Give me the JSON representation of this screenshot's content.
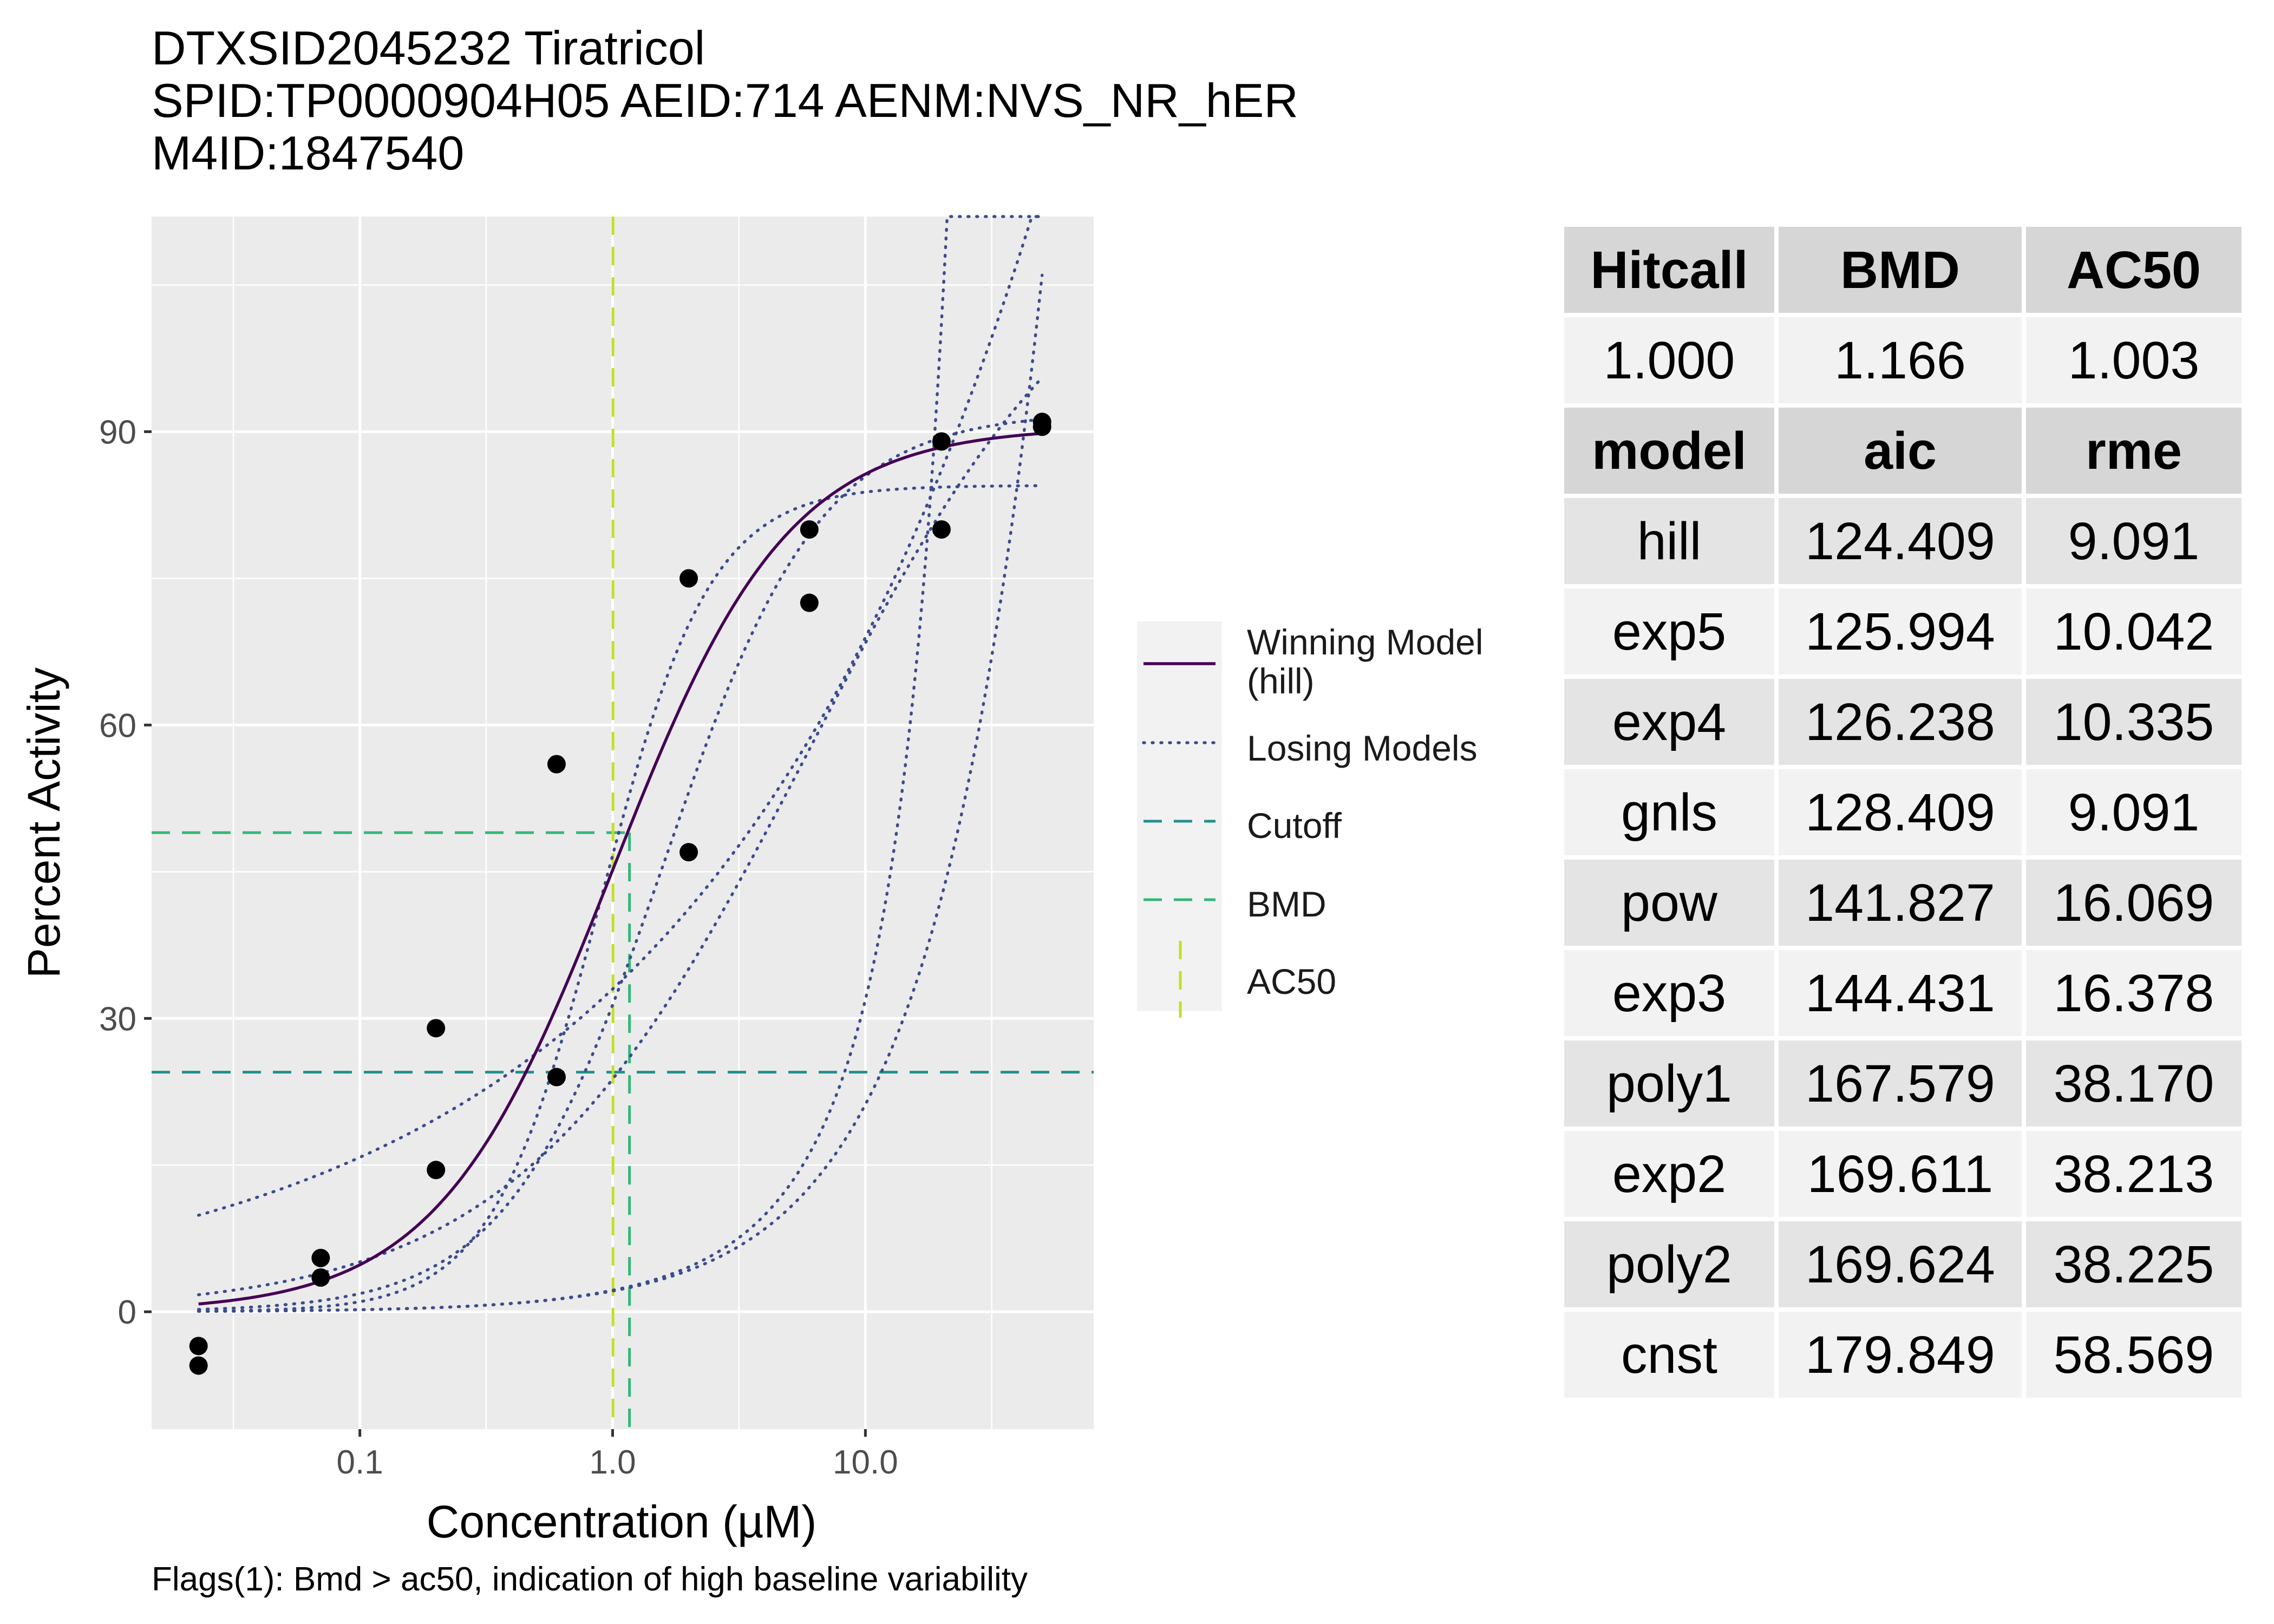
{
  "title": {
    "line1": "DTXSID2045232 Tiratricol",
    "line2": "SPID:TP0000904H05  AEID:714  AENM:NVS_NR_hER",
    "line3": "M4ID:1847540"
  },
  "footnote": "Flags(1): Bmd > ac50, indication of high baseline variability",
  "colors": {
    "panel_bg": "#ebebeb",
    "grid": "#ffffff",
    "points": "#000000",
    "winning": "#440154",
    "losing": "#3b4c8c",
    "cutoff": "#21908d",
    "bmd": "#35b779",
    "ac50": "#c2df23"
  },
  "legend": {
    "winning": "Winning Model\n(hill)",
    "losing": "Losing Models",
    "cutoff": "Cutoff",
    "bmd": "BMD",
    "ac50": "AC50"
  },
  "table": {
    "header1": [
      "Hitcall",
      "BMD",
      "AC50"
    ],
    "values1": [
      "1.000",
      "1.166",
      "1.003"
    ],
    "header2": [
      "model",
      "aic",
      "rme"
    ],
    "rows": [
      [
        "hill",
        "124.409",
        "9.091"
      ],
      [
        "exp5",
        "125.994",
        "10.042"
      ],
      [
        "exp4",
        "126.238",
        "10.335"
      ],
      [
        "gnls",
        "128.409",
        "9.091"
      ],
      [
        "pow",
        "141.827",
        "16.069"
      ],
      [
        "exp3",
        "144.431",
        "16.378"
      ],
      [
        "poly1",
        "167.579",
        "38.170"
      ],
      [
        "exp2",
        "169.611",
        "38.213"
      ],
      [
        "poly2",
        "169.624",
        "38.225"
      ],
      [
        "cnst",
        "179.849",
        "58.569"
      ]
    ]
  },
  "chart_data": {
    "type": "scatter",
    "xlabel": "Concentration (µM)",
    "ylabel": "Percent Activity",
    "x_scale": "log10",
    "xlim": [
      0.015,
      80
    ],
    "ylim": [
      -12,
      112
    ],
    "x_ticks": [
      0.1,
      1.0,
      10.0
    ],
    "x_tick_labels": [
      "0.1",
      "1.0",
      "10.0"
    ],
    "y_ticks": [
      0,
      30,
      60,
      90
    ],
    "y_tick_labels": [
      "0",
      "30",
      "60",
      "90"
    ],
    "grid": true,
    "legend_position": "right",
    "points": [
      {
        "x": 0.023,
        "y": -3.5
      },
      {
        "x": 0.023,
        "y": -5.5
      },
      {
        "x": 0.07,
        "y": 5.5
      },
      {
        "x": 0.07,
        "y": 3.5
      },
      {
        "x": 0.2,
        "y": 29
      },
      {
        "x": 0.2,
        "y": 14.5
      },
      {
        "x": 0.6,
        "y": 56
      },
      {
        "x": 0.6,
        "y": 24
      },
      {
        "x": 2,
        "y": 75
      },
      {
        "x": 2,
        "y": 47
      },
      {
        "x": 6,
        "y": 80
      },
      {
        "x": 6,
        "y": 72.5
      },
      {
        "x": 20,
        "y": 89
      },
      {
        "x": 20,
        "y": 80
      },
      {
        "x": 50,
        "y": 91
      },
      {
        "x": 50,
        "y": 90.5
      }
    ],
    "winning_model": {
      "name": "hill",
      "tp": 90.5,
      "ga": 1.003,
      "p": 1.25,
      "x_range": [
        0.023,
        50
      ]
    },
    "losing_models": [
      {
        "name": "gnls",
        "type": "hill",
        "tp": 84.5,
        "ga": 0.9,
        "p": 2.0,
        "x_range": [
          0.023,
          50
        ]
      },
      {
        "name": "exp5",
        "type": "hill",
        "tp": 92,
        "ga": 1.6,
        "p": 1.4,
        "x_range": [
          0.023,
          50
        ]
      },
      {
        "name": "exp4",
        "type": "hill",
        "tp": 115,
        "ga": 6,
        "p": 0.75,
        "x_range": [
          0.023,
          50
        ]
      },
      {
        "name": "pow",
        "type": "power",
        "a": 33,
        "p": 0.32,
        "x_range": [
          0.023,
          50
        ]
      },
      {
        "name": "poly1",
        "type": "linear",
        "slope": 2.12,
        "x_range": [
          0.023,
          50
        ]
      },
      {
        "name": "exp3",
        "type": "expo",
        "a": 2.2,
        "b": 0.0773,
        "x_range": [
          0.023,
          50
        ]
      }
    ],
    "cutoff": 24.5,
    "bmd": 1.166,
    "bmr": 49,
    "ac50": 1.003
  }
}
